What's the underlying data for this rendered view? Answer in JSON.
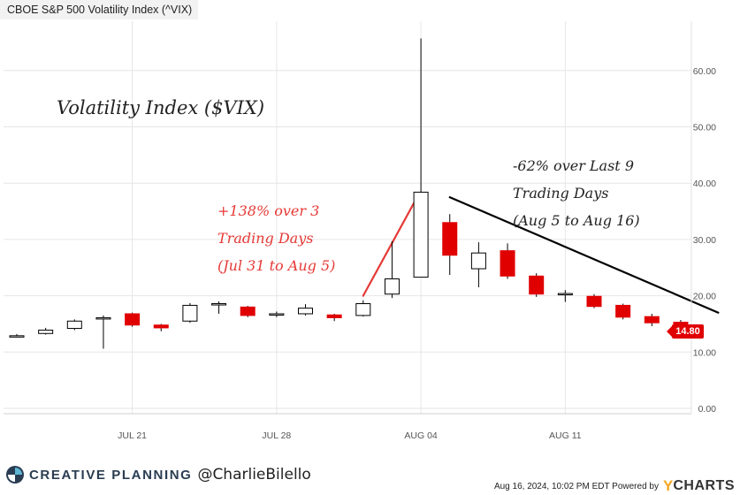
{
  "header": {
    "title": "CBOE S&P 500 Volatility Index (^VIX)"
  },
  "annotations": {
    "title": "Volatility Index ($VIX)",
    "rise": [
      "+138% over 3",
      "Trading Days",
      "(Jul 31 to Aug 5)"
    ],
    "fall": [
      "-62% over Last 9",
      "Trading Days",
      "(Aug 5 to Aug 16)"
    ],
    "rise_color": "#e53935",
    "fall_color": "#000000"
  },
  "last_value_badge": "14.80",
  "footer": {
    "brand": "CREATIVE PLANNING",
    "handle": "@CharlieBilello",
    "timestamp": "Aug 16, 2024, 10:02 PM EDT Powered by",
    "ycharts_y": "Y",
    "ycharts_rest": "CHARTS"
  },
  "colors": {
    "up": "#ffffff",
    "down": "#e00000",
    "wick": "#000000",
    "grid": "#e6e6e6"
  },
  "chart_data": {
    "type": "candlestick",
    "title": "CBOE S&P 500 Volatility Index (^VIX)",
    "ylim": [
      0,
      70
    ],
    "yticks": [
      0,
      10,
      20,
      30,
      40,
      50,
      60
    ],
    "ytick_labels": [
      "0.00",
      "10.00",
      "20.00",
      "30.00",
      "40.00",
      "50.00",
      "60.00"
    ],
    "xtick_labels": [
      {
        "label": "JUL 21",
        "index": 4
      },
      {
        "label": "JUL 28",
        "index": 9
      },
      {
        "label": "AUG 04",
        "index": 14
      },
      {
        "label": "AUG 11",
        "index": 19
      }
    ],
    "candles": [
      {
        "date": "Jul 11",
        "open": 12.9,
        "high": 13.2,
        "low": 12.6,
        "close": 12.9
      },
      {
        "date": "Jul 12",
        "open": 13.3,
        "high": 14.3,
        "low": 13.1,
        "close": 13.9
      },
      {
        "date": "Jul 15",
        "open": 14.2,
        "high": 15.8,
        "low": 13.9,
        "close": 15.5
      },
      {
        "date": "Jul 16",
        "open": 16.0,
        "high": 16.5,
        "low": 10.6,
        "close": 16.1
      },
      {
        "date": "Jul 17",
        "open": 16.8,
        "high": 17.0,
        "low": 14.5,
        "close": 14.8
      },
      {
        "date": "Jul 18",
        "open": 14.8,
        "high": 15.0,
        "low": 13.7,
        "close": 14.3
      },
      {
        "date": "Jul 19",
        "open": 15.5,
        "high": 18.7,
        "low": 15.2,
        "close": 18.3
      },
      {
        "date": "Jul 22",
        "open": 18.4,
        "high": 19.0,
        "low": 16.8,
        "close": 18.6
      },
      {
        "date": "Jul 23",
        "open": 18.0,
        "high": 18.2,
        "low": 16.2,
        "close": 16.5
      },
      {
        "date": "Jul 24",
        "open": 16.7,
        "high": 17.2,
        "low": 16.2,
        "close": 16.8
      },
      {
        "date": "Jul 25",
        "open": 16.8,
        "high": 18.5,
        "low": 16.5,
        "close": 17.8
      },
      {
        "date": "Jul 26",
        "open": 16.6,
        "high": 16.8,
        "low": 15.5,
        "close": 16.1
      },
      {
        "date": "Jul 29",
        "open": 16.5,
        "high": 19.2,
        "low": 16.3,
        "close": 18.6
      },
      {
        "date": "Jul 30",
        "open": 20.3,
        "high": 29.7,
        "low": 19.6,
        "close": 23.0
      },
      {
        "date": "Aug 5",
        "open": 23.3,
        "high": 65.7,
        "low": 23.3,
        "close": 38.4
      },
      {
        "date": "Aug 6",
        "open": 33.0,
        "high": 34.5,
        "low": 23.7,
        "close": 27.2
      },
      {
        "date": "Aug 7",
        "open": 24.8,
        "high": 29.5,
        "low": 21.5,
        "close": 27.6
      },
      {
        "date": "Aug 8",
        "open": 28.0,
        "high": 29.3,
        "low": 23.0,
        "close": 23.5
      },
      {
        "date": "Aug 9",
        "open": 23.5,
        "high": 24.0,
        "low": 19.8,
        "close": 20.3
      },
      {
        "date": "Aug 12",
        "open": 20.2,
        "high": 21.0,
        "low": 18.9,
        "close": 20.4
      },
      {
        "date": "Aug 13",
        "open": 19.9,
        "high": 20.3,
        "low": 17.8,
        "close": 18.1
      },
      {
        "date": "Aug 14",
        "open": 18.3,
        "high": 18.6,
        "low": 15.8,
        "close": 16.2
      },
      {
        "date": "Aug 15",
        "open": 16.3,
        "high": 16.8,
        "low": 14.6,
        "close": 15.2
      },
      {
        "date": "Aug 16",
        "open": 15.3,
        "high": 15.7,
        "low": 14.7,
        "close": 14.8
      }
    ],
    "trendlines": [
      {
        "name": "rise",
        "color": "#e53935",
        "from_index": 12,
        "from_value": 20.0,
        "to_index": 13.9,
        "to_value": 37.8
      },
      {
        "name": "fall",
        "color": "#000000",
        "from_index": 15,
        "from_value": 37.5,
        "to_index": 24.3,
        "to_value": 17.0
      }
    ]
  }
}
